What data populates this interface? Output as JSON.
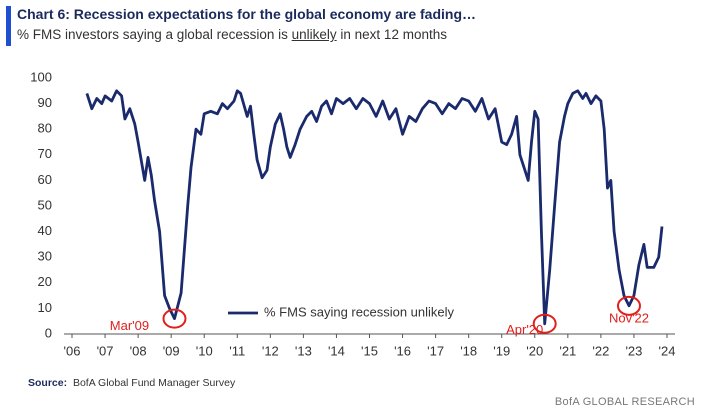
{
  "chart_data": {
    "type": "line",
    "title": "Chart 6: Recession expectations for the global economy are fading…",
    "subtitle": [
      "% FMS investors saying a global recession is ",
      "unlikely",
      " in next 12 months"
    ],
    "source_label": "Source:",
    "source": "BofA Global Fund Manager Survey",
    "footer": "BofA GLOBAL RESEARCH",
    "xlim": [
      2006,
      2024
    ],
    "xticks": [
      {
        "value": 2006,
        "label": "'06"
      },
      {
        "value": 2007,
        "label": "'07"
      },
      {
        "value": 2008,
        "label": "'08"
      },
      {
        "value": 2009,
        "label": "'09"
      },
      {
        "value": 2010,
        "label": "'10"
      },
      {
        "value": 2011,
        "label": "'11"
      },
      {
        "value": 2012,
        "label": "'12"
      },
      {
        "value": 2013,
        "label": "'13"
      },
      {
        "value": 2014,
        "label": "'14"
      },
      {
        "value": 2015,
        "label": "'15"
      },
      {
        "value": 2016,
        "label": "'16"
      },
      {
        "value": 2017,
        "label": "'17"
      },
      {
        "value": 2018,
        "label": "'18"
      },
      {
        "value": 2019,
        "label": "'19"
      },
      {
        "value": 2020,
        "label": "'20"
      },
      {
        "value": 2021,
        "label": "'21"
      },
      {
        "value": 2022,
        "label": "'22"
      },
      {
        "value": 2023,
        "label": "'23"
      },
      {
        "value": 2024,
        "label": "'24"
      }
    ],
    "ylim": [
      0,
      100
    ],
    "yticks": [
      0,
      10,
      20,
      30,
      40,
      50,
      60,
      70,
      80,
      90,
      100
    ],
    "legend": "bottom-center",
    "series": [
      {
        "name": "% FMS saying recession unlikely",
        "color": "#1a2a6c",
        "x": [
          2006.45,
          2006.6,
          2006.75,
          2006.9,
          2007.0,
          2007.2,
          2007.35,
          2007.5,
          2007.6,
          2007.75,
          2007.9,
          2008.0,
          2008.2,
          2008.3,
          2008.4,
          2008.5,
          2008.65,
          2008.8,
          2008.95,
          2009.1,
          2009.3,
          2009.5,
          2009.6,
          2009.75,
          2009.9,
          2010.0,
          2010.2,
          2010.4,
          2010.55,
          2010.7,
          2010.9,
          2011.0,
          2011.1,
          2011.3,
          2011.4,
          2011.5,
          2011.6,
          2011.75,
          2011.9,
          2012.0,
          2012.15,
          2012.3,
          2012.4,
          2012.5,
          2012.6,
          2012.75,
          2012.9,
          2013.1,
          2013.25,
          2013.4,
          2013.55,
          2013.7,
          2013.85,
          2014.0,
          2014.2,
          2014.4,
          2014.6,
          2014.8,
          2015.0,
          2015.2,
          2015.4,
          2015.6,
          2015.8,
          2016.0,
          2016.2,
          2016.4,
          2016.6,
          2016.8,
          2017.0,
          2017.2,
          2017.4,
          2017.6,
          2017.8,
          2018.0,
          2018.2,
          2018.4,
          2018.6,
          2018.8,
          2019.0,
          2019.15,
          2019.3,
          2019.45,
          2019.55,
          2019.7,
          2019.8,
          2019.9,
          2020.0,
          2020.1,
          2020.2,
          2020.3,
          2020.45,
          2020.6,
          2020.75,
          2020.9,
          2021.0,
          2021.15,
          2021.3,
          2021.45,
          2021.55,
          2021.7,
          2021.85,
          2022.0,
          2022.1,
          2022.2,
          2022.3,
          2022.4,
          2022.55,
          2022.7,
          2022.85,
          2023.0,
          2023.15,
          2023.3,
          2023.4,
          2023.6,
          2023.75,
          2023.85
        ],
        "values": [
          94,
          88,
          92,
          90,
          93,
          91,
          95,
          93,
          84,
          88,
          82,
          75,
          60,
          69,
          62,
          52,
          40,
          15,
          10,
          6,
          16,
          50,
          65,
          80,
          78,
          86,
          87,
          86,
          90,
          88,
          91,
          95,
          94,
          85,
          89,
          78,
          68,
          61,
          64,
          73,
          82,
          86,
          80,
          73,
          69,
          74,
          80,
          85,
          87,
          83,
          89,
          91,
          86,
          92,
          90,
          92,
          88,
          92,
          90,
          85,
          91,
          84,
          88,
          78,
          85,
          83,
          88,
          91,
          90,
          86,
          90,
          88,
          92,
          91,
          87,
          92,
          84,
          88,
          75,
          74,
          78,
          85,
          70,
          64,
          60,
          75,
          87,
          84,
          40,
          4,
          25,
          50,
          75,
          85,
          90,
          94,
          95,
          92,
          94,
          90,
          93,
          91,
          80,
          57,
          60,
          40,
          25,
          15,
          11,
          15,
          27,
          35,
          26,
          26,
          30,
          42
        ]
      }
    ],
    "annotations": [
      {
        "text": "Mar'09",
        "x": 2009.1,
        "y": 6
      },
      {
        "text": "Apr'20",
        "x": 2020.3,
        "y": 4
      },
      {
        "text": "Nov'22",
        "x": 2022.85,
        "y": 11
      }
    ],
    "annotation_color": "#e0201b"
  }
}
